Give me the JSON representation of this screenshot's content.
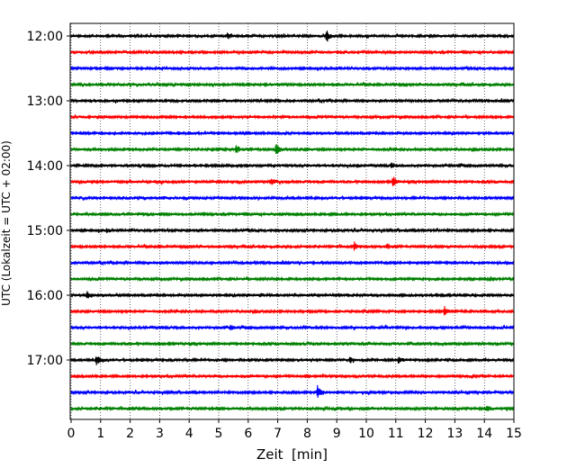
{
  "chart_data": {
    "type": "line",
    "subtype": "helicorder",
    "xlabel": "Zeit  [min]",
    "ylabel": "UTC (Lokalzeit = UTC + 02:00)",
    "xlim": [
      0,
      15
    ],
    "x_ticks": [
      "0",
      "1",
      "2",
      "3",
      "4",
      "5",
      "6",
      "7",
      "8",
      "9",
      "10",
      "11",
      "12",
      "13",
      "14",
      "15"
    ],
    "y_ticks": [
      "12:00",
      "13:00",
      "14:00",
      "15:00",
      "16:00",
      "17:00"
    ],
    "grid": "vertical dotted at each minute",
    "trace_colors": [
      "#000000",
      "#ff0000",
      "#0000ff",
      "#008000"
    ],
    "trace_interval_minutes": 15,
    "traces": [
      {
        "start": "12:00",
        "events": [
          [
            5.3,
            0.35
          ],
          [
            8.65,
            0.9
          ]
        ]
      },
      {
        "start": "12:15",
        "events": []
      },
      {
        "start": "12:30",
        "events": []
      },
      {
        "start": "12:45",
        "events": []
      },
      {
        "start": "13:00",
        "events": []
      },
      {
        "start": "13:15",
        "events": []
      },
      {
        "start": "13:30",
        "events": [
          [
            3.6,
            0.2
          ]
        ]
      },
      {
        "start": "13:45",
        "events": [
          [
            5.6,
            0.45
          ],
          [
            6.95,
            0.85
          ]
        ]
      },
      {
        "start": "14:00",
        "events": [
          [
            9.7,
            0.2
          ],
          [
            10.85,
            0.3
          ]
        ]
      },
      {
        "start": "14:15",
        "events": [
          [
            6.8,
            0.35
          ],
          [
            10.9,
            0.75
          ]
        ]
      },
      {
        "start": "14:30",
        "events": [
          [
            3.1,
            0.2
          ]
        ]
      },
      {
        "start": "14:45",
        "events": []
      },
      {
        "start": "15:00",
        "events": [
          [
            1.2,
            0.3
          ]
        ]
      },
      {
        "start": "15:15",
        "events": [
          [
            9.6,
            0.45
          ],
          [
            10.7,
            0.3
          ]
        ]
      },
      {
        "start": "15:30",
        "events": [
          [
            10.0,
            0.2
          ]
        ]
      },
      {
        "start": "15:45",
        "events": [
          [
            14.2,
            0.2
          ]
        ]
      },
      {
        "start": "16:00",
        "events": [
          [
            0.55,
            0.45
          ],
          [
            6.4,
            0.2
          ]
        ]
      },
      {
        "start": "16:15",
        "events": [
          [
            12.65,
            0.6
          ]
        ]
      },
      {
        "start": "16:30",
        "events": [
          [
            5.4,
            0.4
          ]
        ]
      },
      {
        "start": "16:45",
        "events": []
      },
      {
        "start": "17:00",
        "events": [
          [
            0.85,
            0.65
          ],
          [
            9.45,
            0.35
          ],
          [
            11.1,
            0.4
          ]
        ]
      },
      {
        "start": "17:15",
        "events": []
      },
      {
        "start": "17:30",
        "events": [
          [
            8.35,
            1.0
          ]
        ]
      },
      {
        "start": "17:45",
        "events": [
          [
            14.1,
            0.4
          ]
        ]
      }
    ]
  }
}
